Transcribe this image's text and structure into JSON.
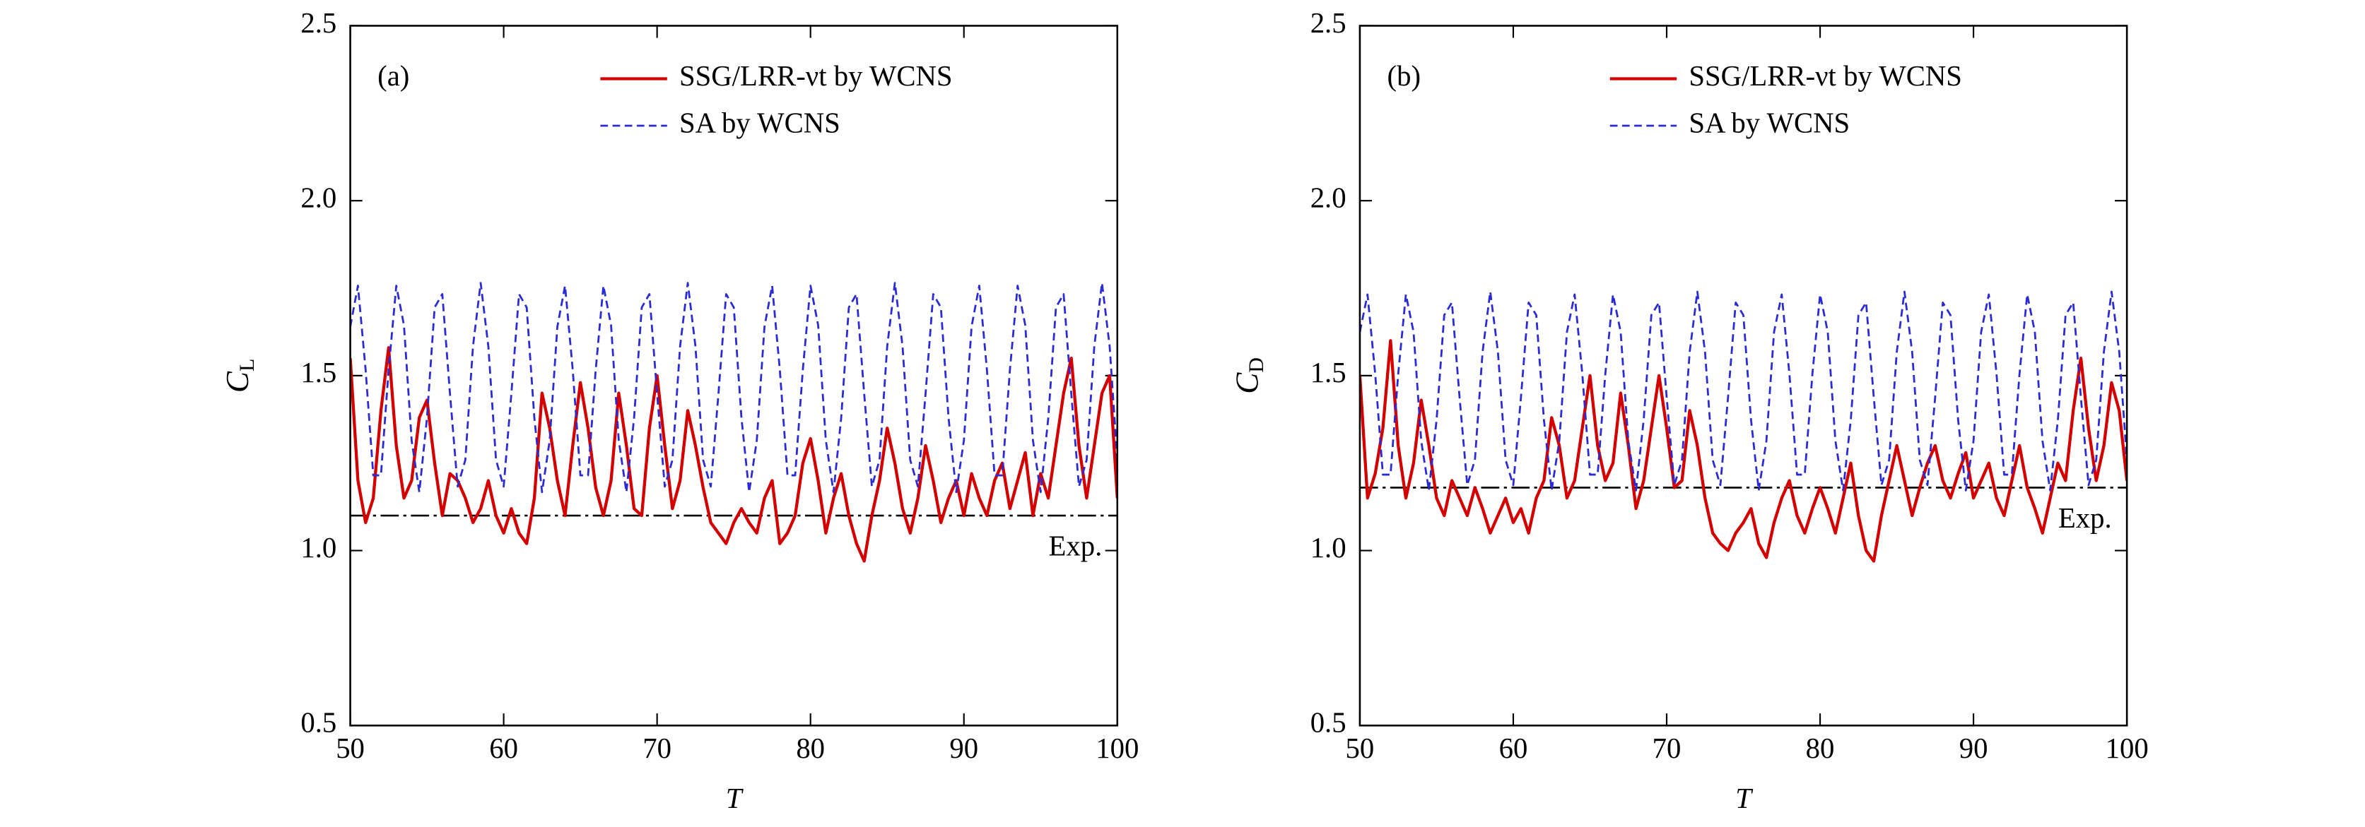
{
  "chart_data": [
    {
      "type": "line",
      "panel": "(a)",
      "xlabel": "T",
      "ylabel": {
        "main": "C",
        "sub": "L"
      },
      "xlim": [
        50,
        100
      ],
      "xticks": [
        50,
        60,
        70,
        80,
        90,
        100
      ],
      "ylim": [
        0.5,
        2.5
      ],
      "yticks": [
        0.5,
        {
          "value": 1.0,
          "label": "1.0"
        },
        1.5,
        {
          "value": 2.0,
          "label": "2.0"
        },
        2.5
      ],
      "legend": "upper right",
      "reference": {
        "value": 1.1,
        "label": "Exp."
      },
      "x": [
        50,
        50.5,
        51,
        51.5,
        52,
        52.5,
        53,
        53.5,
        54,
        54.5,
        55,
        55.5,
        56,
        56.5,
        57,
        57.5,
        58,
        58.5,
        59,
        59.5,
        60,
        60.5,
        61,
        61.5,
        62,
        62.5,
        63,
        63.5,
        64,
        64.5,
        65,
        65.5,
        66,
        66.5,
        67,
        67.5,
        68,
        68.5,
        69,
        69.5,
        70,
        70.5,
        71,
        71.5,
        72,
        72.5,
        73,
        73.5,
        74,
        74.5,
        75,
        75.5,
        76,
        76.5,
        77,
        77.5,
        78,
        78.5,
        79,
        79.5,
        80,
        80.5,
        81,
        81.5,
        82,
        82.5,
        83,
        83.5,
        84,
        84.5,
        85,
        85.5,
        86,
        86.5,
        87,
        87.5,
        88,
        88.5,
        89,
        89.5,
        90,
        90.5,
        91,
        91.5,
        92,
        92.5,
        93,
        93.5,
        94,
        94.5,
        95,
        95.5,
        96,
        96.5,
        97,
        97.5,
        98,
        98.5,
        99,
        99.5,
        100
      ],
      "series": [
        {
          "name": "SSG/LRR-νt by WCNS",
          "color": "#d40000",
          "style": "solid",
          "values": [
            1.55,
            1.2,
            1.08,
            1.15,
            1.4,
            1.58,
            1.3,
            1.15,
            1.2,
            1.38,
            1.43,
            1.25,
            1.1,
            1.22,
            1.2,
            1.15,
            1.08,
            1.12,
            1.2,
            1.1,
            1.05,
            1.12,
            1.05,
            1.02,
            1.15,
            1.45,
            1.35,
            1.2,
            1.1,
            1.3,
            1.48,
            1.35,
            1.18,
            1.1,
            1.2,
            1.45,
            1.3,
            1.12,
            1.1,
            1.35,
            1.5,
            1.3,
            1.12,
            1.2,
            1.4,
            1.3,
            1.18,
            1.08,
            1.05,
            1.02,
            1.08,
            1.12,
            1.08,
            1.05,
            1.15,
            1.2,
            1.02,
            1.05,
            1.1,
            1.25,
            1.32,
            1.2,
            1.05,
            1.15,
            1.22,
            1.1,
            1.02,
            0.97,
            1.1,
            1.2,
            1.35,
            1.25,
            1.12,
            1.05,
            1.15,
            1.3,
            1.2,
            1.08,
            1.15,
            1.2,
            1.1,
            1.22,
            1.15,
            1.1,
            1.2,
            1.25,
            1.12,
            1.2,
            1.28,
            1.1,
            1.22,
            1.15,
            1.3,
            1.45,
            1.55,
            1.3,
            1.15,
            1.3,
            1.45,
            1.5,
            1.15
          ]
        },
        {
          "name": "SA by WCNS",
          "color": "#2b2bd6",
          "style": "dashed",
          "values": [
            1.64,
            1.757,
            1.517,
            1.215,
            1.215,
            1.517,
            1.757,
            1.644,
            1.315,
            1.167,
            1.379,
            1.695,
            1.733,
            1.448,
            1.183,
            1.259,
            1.584,
            1.765,
            1.584,
            1.259,
            1.183,
            1.448,
            1.733,
            1.695,
            1.379,
            1.167,
            1.315,
            1.64,
            1.757,
            1.517,
            1.215,
            1.215,
            1.517,
            1.757,
            1.644,
            1.315,
            1.167,
            1.379,
            1.695,
            1.733,
            1.448,
            1.183,
            1.259,
            1.584,
            1.765,
            1.584,
            1.259,
            1.183,
            1.448,
            1.733,
            1.695,
            1.379,
            1.167,
            1.315,
            1.64,
            1.757,
            1.517,
            1.215,
            1.215,
            1.517,
            1.757,
            1.644,
            1.315,
            1.167,
            1.379,
            1.695,
            1.733,
            1.448,
            1.183,
            1.259,
            1.584,
            1.765,
            1.584,
            1.259,
            1.183,
            1.448,
            1.733,
            1.695,
            1.379,
            1.167,
            1.315,
            1.64,
            1.757,
            1.517,
            1.215,
            1.215,
            1.517,
            1.757,
            1.644,
            1.315,
            1.167,
            1.379,
            1.695,
            1.733,
            1.448,
            1.183,
            1.259,
            1.584,
            1.765,
            1.584,
            1.259
          ]
        }
      ]
    },
    {
      "type": "line",
      "panel": "(b)",
      "xlabel": "T",
      "ylabel": {
        "main": "C",
        "sub": "D"
      },
      "xlim": [
        50,
        100
      ],
      "xticks": [
        50,
        60,
        70,
        80,
        90,
        100
      ],
      "ylim": [
        0.5,
        2.5
      ],
      "yticks": [
        0.5,
        {
          "value": 1.0,
          "label": "1.0"
        },
        1.5,
        {
          "value": 2.0,
          "label": "2.0"
        },
        2.5
      ],
      "legend": "upper right",
      "reference": {
        "value": 1.18,
        "label": "Exp."
      },
      "x": [
        50,
        50.5,
        51,
        51.5,
        52,
        52.5,
        53,
        53.5,
        54,
        54.5,
        55,
        55.5,
        56,
        56.5,
        57,
        57.5,
        58,
        58.5,
        59,
        59.5,
        60,
        60.5,
        61,
        61.5,
        62,
        62.5,
        63,
        63.5,
        64,
        64.5,
        65,
        65.5,
        66,
        66.5,
        67,
        67.5,
        68,
        68.5,
        69,
        69.5,
        70,
        70.5,
        71,
        71.5,
        72,
        72.5,
        73,
        73.5,
        74,
        74.5,
        75,
        75.5,
        76,
        76.5,
        77,
        77.5,
        78,
        78.5,
        79,
        79.5,
        80,
        80.5,
        81,
        81.5,
        82,
        82.5,
        83,
        83.5,
        84,
        84.5,
        85,
        85.5,
        86,
        86.5,
        87,
        87.5,
        88,
        88.5,
        89,
        89.5,
        90,
        90.5,
        91,
        91.5,
        92,
        92.5,
        93,
        93.5,
        94,
        94.5,
        95,
        95.5,
        96,
        96.5,
        97,
        97.5,
        98,
        98.5,
        99,
        99.5,
        100
      ],
      "series": [
        {
          "name": "SSG/LRR-νt by WCNS",
          "color": "#d40000",
          "style": "solid",
          "values": [
            1.5,
            1.15,
            1.22,
            1.35,
            1.6,
            1.3,
            1.15,
            1.25,
            1.43,
            1.3,
            1.15,
            1.1,
            1.2,
            1.15,
            1.1,
            1.18,
            1.12,
            1.05,
            1.1,
            1.15,
            1.08,
            1.12,
            1.05,
            1.15,
            1.2,
            1.38,
            1.3,
            1.15,
            1.2,
            1.35,
            1.5,
            1.3,
            1.2,
            1.25,
            1.45,
            1.3,
            1.12,
            1.2,
            1.35,
            1.5,
            1.35,
            1.18,
            1.2,
            1.4,
            1.3,
            1.15,
            1.05,
            1.02,
            1.0,
            1.05,
            1.08,
            1.12,
            1.02,
            0.98,
            1.08,
            1.15,
            1.2,
            1.1,
            1.05,
            1.12,
            1.18,
            1.12,
            1.05,
            1.15,
            1.25,
            1.1,
            1.0,
            0.97,
            1.1,
            1.2,
            1.3,
            1.2,
            1.1,
            1.18,
            1.25,
            1.3,
            1.2,
            1.15,
            1.22,
            1.28,
            1.15,
            1.2,
            1.25,
            1.15,
            1.1,
            1.2,
            1.3,
            1.18,
            1.12,
            1.05,
            1.15,
            1.25,
            1.2,
            1.4,
            1.55,
            1.35,
            1.2,
            1.3,
            1.48,
            1.4,
            1.2
          ]
        },
        {
          "name": "SA by WCNS",
          "color": "#2b2bd6",
          "style": "dashed",
          "values": [
            1.625,
            1.732,
            1.505,
            1.217,
            1.217,
            1.505,
            1.732,
            1.625,
            1.313,
            1.172,
            1.373,
            1.673,
            1.709,
            1.438,
            1.187,
            1.259,
            1.568,
            1.74,
            1.568,
            1.259,
            1.187,
            1.438,
            1.709,
            1.673,
            1.373,
            1.172,
            1.313,
            1.625,
            1.732,
            1.505,
            1.217,
            1.217,
            1.505,
            1.732,
            1.625,
            1.313,
            1.172,
            1.373,
            1.673,
            1.709,
            1.438,
            1.187,
            1.259,
            1.568,
            1.74,
            1.568,
            1.259,
            1.187,
            1.438,
            1.709,
            1.673,
            1.373,
            1.172,
            1.313,
            1.625,
            1.732,
            1.505,
            1.217,
            1.217,
            1.505,
            1.732,
            1.625,
            1.313,
            1.172,
            1.373,
            1.673,
            1.709,
            1.438,
            1.187,
            1.259,
            1.568,
            1.74,
            1.568,
            1.259,
            1.187,
            1.438,
            1.709,
            1.673,
            1.373,
            1.172,
            1.313,
            1.625,
            1.732,
            1.505,
            1.217,
            1.217,
            1.505,
            1.732,
            1.625,
            1.313,
            1.172,
            1.373,
            1.673,
            1.709,
            1.438,
            1.187,
            1.259,
            1.568,
            1.74,
            1.568,
            1.259
          ]
        }
      ]
    }
  ]
}
